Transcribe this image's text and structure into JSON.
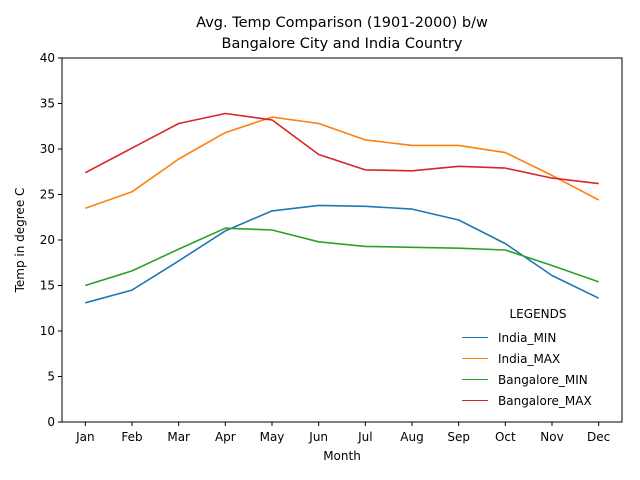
{
  "colors": {
    "India_MIN": "#1f77b4",
    "India_MAX": "#ff7f0e",
    "Bangalore_MIN": "#2ca02c",
    "Bangalore_MAX": "#d62728"
  },
  "chart_data": {
    "type": "line",
    "title": "Avg. Temp Comparison (1901-2000) b/w",
    "subtitle": "Bangalore City and India Country",
    "xlabel": "Month",
    "ylabel": "Temp in degree C",
    "categories": [
      "Jan",
      "Feb",
      "Mar",
      "Apr",
      "May",
      "Jun",
      "Jul",
      "Aug",
      "Sep",
      "Oct",
      "Nov",
      "Dec"
    ],
    "ylim": [
      0,
      40
    ],
    "yticks": [
      "0",
      "5",
      "10",
      "15",
      "20",
      "25",
      "30",
      "35",
      "40"
    ],
    "grid": false,
    "legend": {
      "title": "LEGENDS",
      "position": "bottom-right"
    },
    "series": [
      {
        "name": "India_MIN",
        "values": [
          13.1,
          14.5,
          17.7,
          21.0,
          23.2,
          23.8,
          23.7,
          23.4,
          22.2,
          19.6,
          16.1,
          13.6
        ]
      },
      {
        "name": "India_MAX",
        "values": [
          23.5,
          25.3,
          28.9,
          31.8,
          33.5,
          32.8,
          31.0,
          30.4,
          30.4,
          29.6,
          27.1,
          24.4
        ]
      },
      {
        "name": "Bangalore_MIN",
        "values": [
          15.0,
          16.6,
          19.0,
          21.3,
          21.1,
          19.8,
          19.3,
          19.2,
          19.1,
          18.9,
          17.2,
          15.4
        ]
      },
      {
        "name": "Bangalore_MAX",
        "values": [
          27.4,
          30.1,
          32.8,
          33.9,
          33.2,
          29.4,
          27.7,
          27.6,
          28.1,
          27.9,
          26.8,
          26.2
        ]
      }
    ]
  }
}
